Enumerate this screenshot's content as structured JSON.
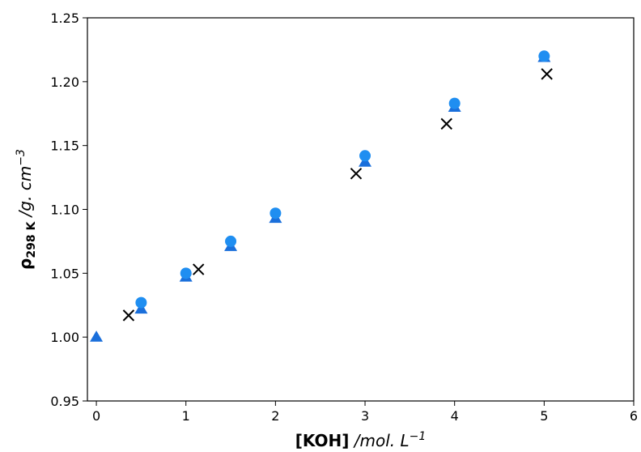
{
  "chart_data": {
    "type": "scatter",
    "xlabel": "[KOH] /mol. L⁻¹",
    "ylabel": "ρ298 K /g. cm⁻³",
    "xlabel_parts": {
      "bold": "[KOH]",
      "italic": " /mol. L",
      "sup": "−1"
    },
    "ylabel_parts": {
      "rho": "ρ",
      "sub": "298 K",
      "italic": " /g. cm",
      "sup": "−3"
    },
    "xlim": [
      -0.1,
      6
    ],
    "ylim": [
      0.95,
      1.25
    ],
    "xticks": [
      0,
      1,
      2,
      3,
      4,
      5,
      6
    ],
    "yticks": [
      0.95,
      1.0,
      1.05,
      1.1,
      1.15,
      1.2,
      1.25
    ],
    "xtick_labels": [
      "0",
      "1",
      "2",
      "3",
      "4",
      "5",
      "6"
    ],
    "ytick_labels": [
      "0.95",
      "1.00",
      "1.05",
      "1.10",
      "1.15",
      "1.20",
      "1.25"
    ],
    "grid": false,
    "series": [
      {
        "marker": "triangle",
        "color": "#1a6fdb",
        "x": [
          0,
          0.5,
          1,
          1.5,
          2,
          3,
          4,
          5
        ],
        "y": [
          1.0,
          1.022,
          1.047,
          1.071,
          1.093,
          1.137,
          1.18,
          1.219
        ]
      },
      {
        "marker": "circle",
        "color": "#1f8ef1",
        "x": [
          0.5,
          1,
          1.5,
          2,
          3,
          4,
          5
        ],
        "y": [
          1.027,
          1.05,
          1.075,
          1.097,
          1.142,
          1.183,
          1.22
        ]
      },
      {
        "marker": "x",
        "color": "#000000",
        "x": [
          0.36,
          1.14,
          2.9,
          3.91,
          5.03
        ],
        "y": [
          1.017,
          1.053,
          1.128,
          1.167,
          1.206
        ]
      }
    ]
  }
}
